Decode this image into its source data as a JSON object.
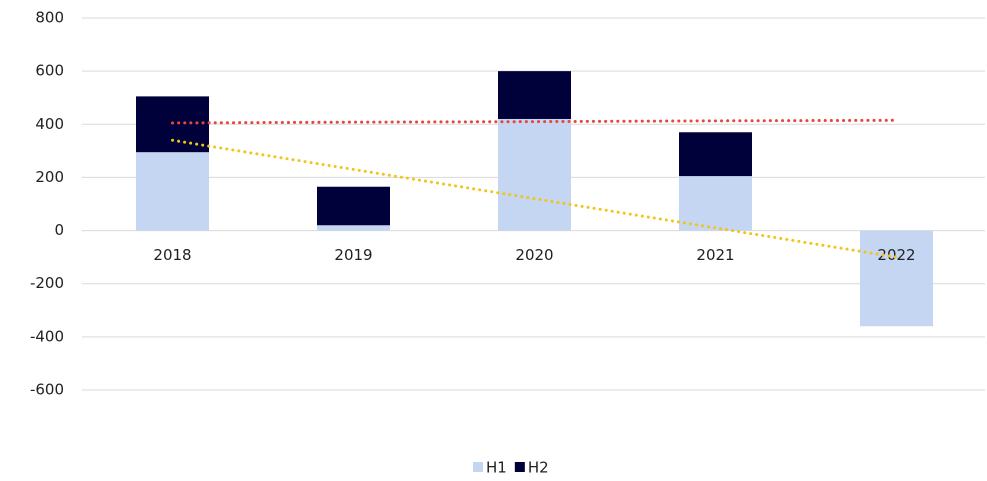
{
  "chart_data": {
    "type": "bar",
    "stacked": true,
    "categories": [
      "2018",
      "2019",
      "2020",
      "2021",
      "2022"
    ],
    "series": [
      {
        "name": "H1",
        "color": "#c5d6f2",
        "values": [
          295,
          20,
          420,
          205,
          -360
        ]
      },
      {
        "name": "H2",
        "color": "#00003a",
        "values": [
          210,
          145,
          180,
          165,
          0
        ]
      }
    ],
    "trendlines": [
      {
        "color": "#e8453c",
        "values": [
          405,
          408,
          410,
          413,
          415
        ]
      },
      {
        "color": "#f0c419",
        "values": [
          340,
          230,
          120,
          10,
          -100
        ]
      }
    ],
    "ylim": [
      -600,
      800
    ],
    "yticks": [
      -600,
      -400,
      -200,
      0,
      200,
      400,
      600,
      800
    ],
    "grid": true,
    "legend": "bottom"
  }
}
